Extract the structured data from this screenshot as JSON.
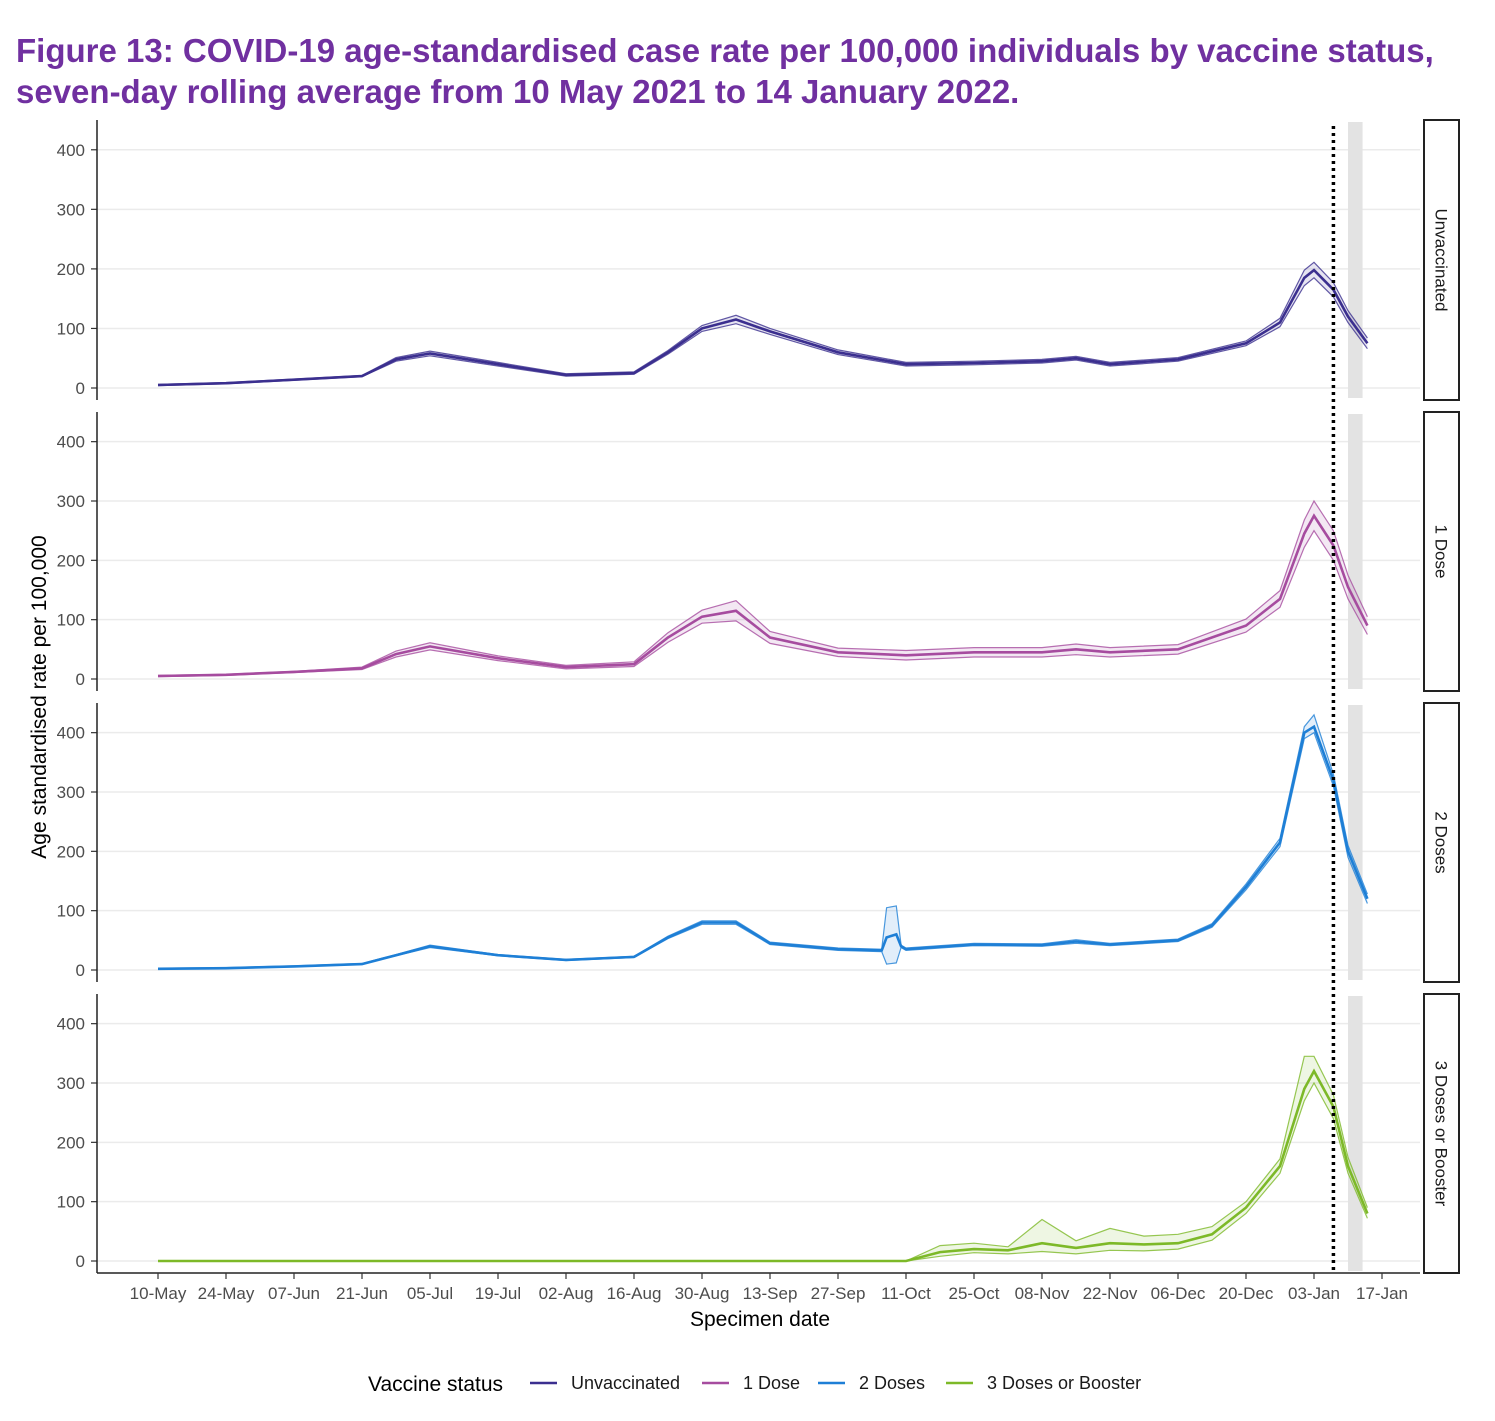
{
  "title": "Figure 13: COVID-19 age-standardised case rate per 100,000 individuals by vaccine status, seven-day rolling average from 10 May 2021 to 14 January 2022.",
  "chart_data": {
    "type": "line",
    "title": "Figure 13: COVID-19 age-standardised case rate per 100,000 individuals by vaccine status, seven-day rolling average from 10 May 2021 to 14 January 2022.",
    "xlabel": "Specimen date",
    "ylabel": "Age standardised rate per 100,000",
    "x_ticks": [
      "10-May",
      "24-May",
      "07-Jun",
      "21-Jun",
      "05-Jul",
      "19-Jul",
      "02-Aug",
      "16-Aug",
      "30-Aug",
      "13-Sep",
      "27-Sep",
      "11-Oct",
      "25-Oct",
      "08-Nov",
      "22-Nov",
      "06-Dec",
      "20-Dec",
      "03-Jan",
      "17-Jan"
    ],
    "y_ticks": [
      0,
      100,
      200,
      300,
      400
    ],
    "ylim": [
      0,
      450
    ],
    "facets": [
      "Unvaccinated",
      "1 Dose",
      "2 Doses",
      "3 Doses or Booster"
    ],
    "legend_title": "Vaccine status",
    "legend_position": "bottom",
    "grid": true,
    "annotations": {
      "dotted_vertical_line_date": "2022-01-07",
      "shaded_band": [
        "2022-01-10",
        "2022-01-13"
      ]
    },
    "series": [
      {
        "name": "Unvaccinated",
        "color": "#3B2F8F",
        "x": [
          "2021-05-10",
          "2021-05-24",
          "2021-06-07",
          "2021-06-21",
          "2021-06-28",
          "2021-07-05",
          "2021-07-19",
          "2021-08-02",
          "2021-08-16",
          "2021-08-23",
          "2021-08-30",
          "2021-09-06",
          "2021-09-13",
          "2021-09-27",
          "2021-10-11",
          "2021-10-25",
          "2021-11-08",
          "2021-11-15",
          "2021-11-22",
          "2021-12-06",
          "2021-12-20",
          "2021-12-27",
          "2022-01-01",
          "2022-01-03",
          "2022-01-07",
          "2022-01-10",
          "2022-01-14"
        ],
        "y": [
          5,
          8,
          14,
          20,
          48,
          58,
          40,
          22,
          25,
          60,
          100,
          115,
          95,
          60,
          40,
          42,
          45,
          50,
          40,
          48,
          75,
          110,
          185,
          198,
          165,
          120,
          75
        ],
        "lower": [
          4,
          7,
          13,
          19,
          45,
          54,
          37,
          20,
          23,
          57,
          95,
          108,
          90,
          56,
          37,
          39,
          42,
          47,
          37,
          45,
          71,
          103,
          172,
          185,
          153,
          110,
          66
        ],
        "upper": [
          6,
          9,
          15,
          21,
          51,
          62,
          43,
          24,
          27,
          63,
          105,
          122,
          100,
          64,
          43,
          45,
          48,
          53,
          43,
          51,
          79,
          117,
          198,
          211,
          177,
          130,
          84
        ]
      },
      {
        "name": "1 Dose",
        "color": "#A64C9F",
        "x": [
          "2021-05-10",
          "2021-05-24",
          "2021-06-07",
          "2021-06-21",
          "2021-06-28",
          "2021-07-05",
          "2021-07-19",
          "2021-08-02",
          "2021-08-16",
          "2021-08-23",
          "2021-08-30",
          "2021-09-06",
          "2021-09-13",
          "2021-09-27",
          "2021-10-11",
          "2021-10-25",
          "2021-11-08",
          "2021-11-15",
          "2021-11-22",
          "2021-12-06",
          "2021-12-20",
          "2021-12-27",
          "2022-01-01",
          "2022-01-03",
          "2022-01-07",
          "2022-01-10",
          "2022-01-14"
        ],
        "y": [
          5,
          7,
          12,
          18,
          42,
          55,
          35,
          20,
          25,
          70,
          105,
          115,
          70,
          45,
          40,
          45,
          45,
          50,
          45,
          50,
          90,
          135,
          245,
          275,
          225,
          155,
          90
        ],
        "lower": [
          4,
          6,
          11,
          16,
          37,
          49,
          31,
          17,
          21,
          62,
          94,
          98,
          60,
          38,
          32,
          37,
          37,
          41,
          37,
          42,
          79,
          121,
          222,
          250,
          200,
          135,
          75
        ],
        "upper": [
          6,
          8,
          13,
          20,
          47,
          61,
          39,
          23,
          29,
          78,
          116,
          132,
          80,
          52,
          48,
          53,
          53,
          59,
          53,
          58,
          101,
          149,
          268,
          300,
          250,
          175,
          105
        ]
      },
      {
        "name": "2 Doses",
        "color": "#1E7FD6",
        "x": [
          "2021-05-10",
          "2021-05-24",
          "2021-06-07",
          "2021-06-21",
          "2021-06-28",
          "2021-07-05",
          "2021-07-19",
          "2021-08-02",
          "2021-08-16",
          "2021-08-23",
          "2021-08-30",
          "2021-09-06",
          "2021-09-13",
          "2021-09-27",
          "2021-10-06",
          "2021-10-07",
          "2021-10-09",
          "2021-10-10",
          "2021-10-11",
          "2021-10-25",
          "2021-11-08",
          "2021-11-15",
          "2021-11-22",
          "2021-12-06",
          "2021-12-13",
          "2021-12-20",
          "2021-12-27",
          "2022-01-01",
          "2022-01-03",
          "2022-01-07",
          "2022-01-10",
          "2022-01-14"
        ],
        "y": [
          2,
          3,
          6,
          10,
          25,
          40,
          25,
          17,
          22,
          55,
          80,
          80,
          45,
          35,
          33,
          55,
          60,
          40,
          35,
          43,
          42,
          48,
          43,
          50,
          75,
          140,
          215,
          400,
          410,
          320,
          200,
          120
        ],
        "lower": [
          2,
          3,
          6,
          10,
          24,
          38,
          24,
          16,
          21,
          53,
          77,
          77,
          43,
          33,
          31,
          10,
          12,
          38,
          33,
          41,
          40,
          45,
          41,
          48,
          72,
          135,
          208,
          390,
          400,
          310,
          190,
          112
        ],
        "upper": [
          3,
          4,
          7,
          11,
          26,
          42,
          26,
          18,
          23,
          57,
          83,
          83,
          47,
          37,
          35,
          105,
          108,
          42,
          37,
          45,
          44,
          51,
          45,
          52,
          78,
          145,
          222,
          410,
          430,
          330,
          210,
          128
        ]
      },
      {
        "name": "3 Doses or Booster",
        "color": "#7DB928",
        "x": [
          "2021-05-10",
          "2021-06-21",
          "2021-08-02",
          "2021-09-13",
          "2021-10-11",
          "2021-10-18",
          "2021-10-25",
          "2021-11-01",
          "2021-11-08",
          "2021-11-15",
          "2021-11-22",
          "2021-11-29",
          "2021-12-06",
          "2021-12-13",
          "2021-12-20",
          "2021-12-27",
          "2022-01-01",
          "2022-01-03",
          "2022-01-07",
          "2022-01-10",
          "2022-01-14"
        ],
        "y": [
          0,
          0,
          0,
          0,
          0,
          15,
          20,
          18,
          30,
          22,
          30,
          28,
          30,
          45,
          90,
          160,
          290,
          320,
          260,
          160,
          80
        ],
        "lower": [
          0,
          0,
          0,
          0,
          0,
          8,
          14,
          12,
          16,
          12,
          18,
          17,
          20,
          35,
          80,
          148,
          270,
          300,
          240,
          148,
          72
        ],
        "upper": [
          0,
          0,
          0,
          0,
          0,
          26,
          30,
          24,
          70,
          34,
          55,
          42,
          45,
          58,
          100,
          172,
          345,
          345,
          280,
          175,
          90
        ]
      }
    ]
  }
}
